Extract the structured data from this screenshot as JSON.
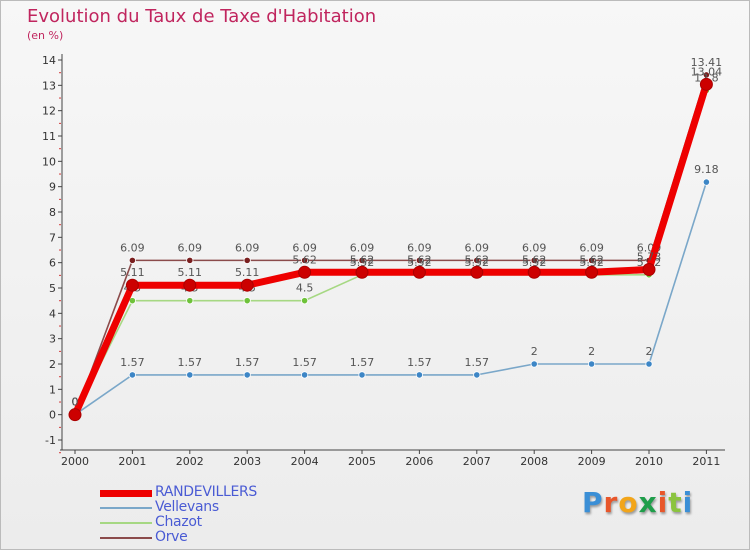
{
  "page": {
    "title": "Evolution du Taux de Taxe d'Habitation",
    "subtitle": "(en %)",
    "logo": {
      "text": "Proxiti",
      "letters": [
        {
          "ch": "P",
          "color": "#3b8fd6"
        },
        {
          "ch": "r",
          "color": "#e8562a"
        },
        {
          "ch": "o",
          "color": "#f2a51a"
        },
        {
          "ch": "x",
          "color": "#1f9e4a"
        },
        {
          "ch": "i",
          "color": "#e8562a"
        },
        {
          "ch": "t",
          "color": "#8bc43f"
        },
        {
          "ch": "i",
          "color": "#3b8fd6"
        }
      ]
    }
  },
  "chart_data": {
    "type": "line",
    "title": "Evolution du Taux de Taxe d'Habitation",
    "ylabel": "(en %)",
    "xlabel": "",
    "categories": [
      "2000",
      "2001",
      "2002",
      "2003",
      "2004",
      "2005",
      "2006",
      "2007",
      "2008",
      "2009",
      "2010",
      "2011"
    ],
    "ylim": [
      -1,
      14
    ],
    "yticks": [
      "-1",
      "0",
      "1",
      "2",
      "3",
      "4",
      "5",
      "6",
      "7",
      "8",
      "9",
      "10",
      "11",
      "12",
      "13",
      "14"
    ],
    "grid": false,
    "legend_position": "bottom-left",
    "series": [
      {
        "name": "Orve",
        "color": "#8b4b4b",
        "marker_color": "#7a1f1f",
        "values": [
          0,
          6.09,
          6.09,
          6.09,
          6.09,
          6.09,
          6.09,
          6.09,
          6.09,
          6.09,
          6.09,
          13.41
        ],
        "labels": [
          "0",
          "6.09",
          "6.09",
          "6.09",
          "6.09",
          "6.09",
          "6.09",
          "6.09",
          "6.09",
          "6.09",
          "6.09",
          "13.41"
        ]
      },
      {
        "name": "Chazot",
        "color": "#a6d883",
        "marker_color": "#6ec23a",
        "values": [
          0,
          4.5,
          4.5,
          4.5,
          4.5,
          5.52,
          5.52,
          5.52,
          5.52,
          5.52,
          5.52,
          12.8
        ],
        "labels": [
          "0",
          "4.5",
          "4.5",
          "4.5",
          "4.5",
          "5.52",
          "5.52",
          "5.52",
          "5.52",
          "5.52",
          "5.52",
          "12.8"
        ]
      },
      {
        "name": "Vellevans",
        "color": "#7aa7c9",
        "marker_color": "#3d86c6",
        "values": [
          0,
          1.57,
          1.57,
          1.57,
          1.57,
          1.57,
          1.57,
          1.57,
          2,
          2,
          2,
          9.18
        ],
        "labels": [
          "0",
          "1.57",
          "1.57",
          "1.57",
          "1.57",
          "1.57",
          "1.57",
          "1.57",
          "2",
          "2",
          "2",
          "9.18"
        ]
      },
      {
        "name": "RANDEVILLERS",
        "color": "#ee0000",
        "marker_color": "#cc0000",
        "values": [
          0,
          5.11,
          5.11,
          5.11,
          5.62,
          5.62,
          5.62,
          5.62,
          5.62,
          5.62,
          5.73,
          13.04
        ],
        "labels": [
          "0",
          "5.11",
          "5.11",
          "5.11",
          "5.62",
          "5.62",
          "5.62",
          "5.62",
          "5.62",
          "5.62",
          "5.73",
          "13.04"
        ]
      }
    ],
    "legend": [
      "RANDEVILLERS",
      "Vellevans",
      "Chazot",
      "Orve"
    ]
  }
}
